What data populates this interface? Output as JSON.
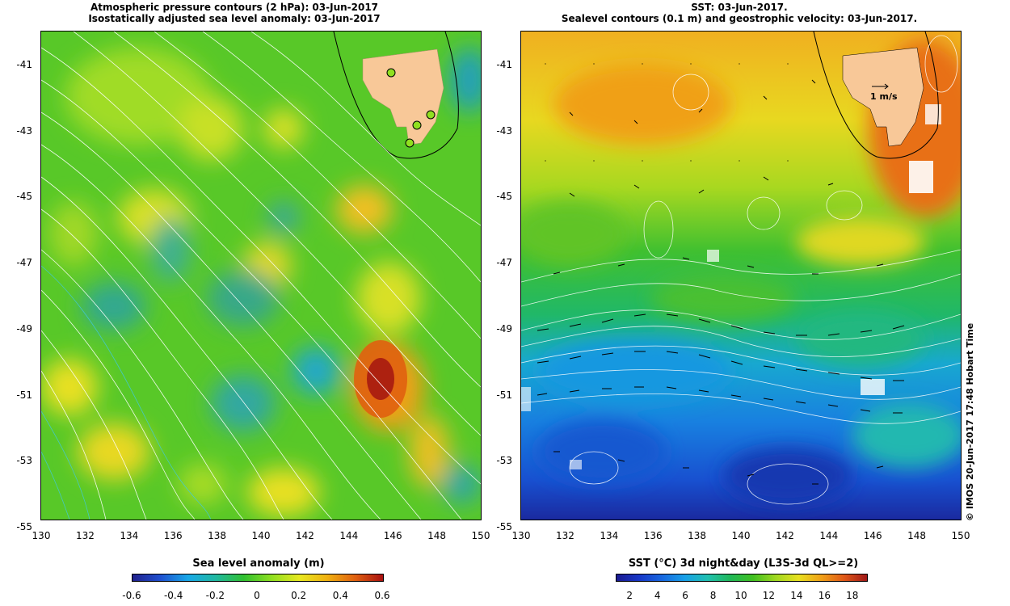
{
  "left_panel": {
    "title_line1": "Atmospheric pressure contours (2 hPa): 03-Jun-2017",
    "title_line2": "Isostatically adjusted sea level anomaly: 03-Jun-2017",
    "colorbar": {
      "title": "Sea level anomaly (m)",
      "labels": [
        "-0.6",
        "-0.4",
        "-0.2",
        "0",
        "0.2",
        "0.4",
        "0.6"
      ],
      "colors": [
        "#20208c",
        "#1f50d0",
        "#18a8e8",
        "#20b8a0",
        "#30c030",
        "#90e020",
        "#e8e820",
        "#f0b010",
        "#e06010",
        "#a81010"
      ]
    }
  },
  "right_panel": {
    "title_line1": "SST: 03-Jun-2017.",
    "title_line2": "Sealevel contours (0.1 m) and geostrophic velocity: 03-Jun-2017.",
    "velocity_scale_label": "1 m/s",
    "colorbar": {
      "title": "SST (°C) 3d night&day (L3S-3d QL>=2)",
      "labels": [
        "2",
        "4",
        "6",
        "8",
        "10",
        "12",
        "14",
        "16",
        "18"
      ],
      "colors": [
        "#1a1a90",
        "#1838c8",
        "#1868e0",
        "#18a0e8",
        "#20c0b0",
        "#20b858",
        "#40c020",
        "#a0d820",
        "#e8e020",
        "#f0a018",
        "#e05818",
        "#a01818"
      ]
    },
    "credit": "© IMOS 20-Jun-2017 17:48 Hobart Time"
  },
  "axes": {
    "y_ticks": [
      "-41",
      "-43",
      "-45",
      "-47",
      "-49",
      "-51",
      "-53",
      "-55"
    ],
    "x_ticks": [
      "130",
      "132",
      "134",
      "136",
      "138",
      "140",
      "142",
      "144",
      "146",
      "148",
      "150"
    ]
  },
  "colors": {
    "land": "#f8c898",
    "station": "#90e020",
    "contour": "#ffffff"
  }
}
